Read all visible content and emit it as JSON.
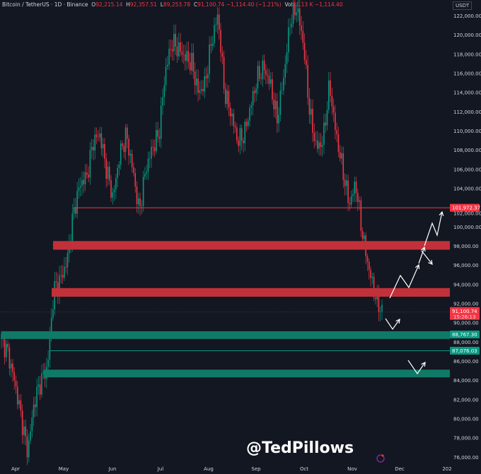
{
  "header": {
    "symbol": "Bitcoin / TetherUS · 1D · Binance",
    "o_label": "O",
    "open": "92,215.14",
    "h_label": "H",
    "high": "92,357.51",
    "l_label": "L",
    "low": "89,253.78",
    "c_label": "C",
    "close": "91,100.74",
    "change": "−1,114.40 (−1.21%)",
    "vol_label": "Vol",
    "volume": "21.13 K",
    "vol_change": "−1,114.40"
  },
  "currency": "USDT",
  "watermark": "@TedPillows",
  "colors": {
    "background": "#131722",
    "up": "#089981",
    "down": "#f23645",
    "zone_red": "#c2303a",
    "zone_green": "#0f7a67",
    "arrows": "#ffffff"
  },
  "chart_data": {
    "type": "candlestick",
    "yaxis": {
      "min": 75500,
      "max": 123500,
      "ticks": [
        76000,
        78000,
        80000,
        82000,
        84000,
        86000,
        88000,
        90000,
        92000,
        94000,
        96000,
        98000,
        100000,
        102000,
        104000,
        106000,
        108000,
        110000,
        112000,
        114000,
        116000,
        118000,
        120000,
        122000
      ]
    },
    "ytick_labels": [
      "76,000.00",
      "78,000.00",
      "80,000.00",
      "82,000.00",
      "84,000.00",
      "86,000.00",
      "88,000.00",
      "90,000.00",
      "92,000.00",
      "94,000.00",
      "96,000.00",
      "98,000.00",
      "100,000.00",
      "102,000.00",
      "104,000.00",
      "106,000.00",
      "108,000.00",
      "110,000.00",
      "112,000.00",
      "114,000.00",
      "116,000.00",
      "118,000.00",
      "120,000.00",
      "122,000.00"
    ],
    "xtick_labels": [
      "Apr",
      "May",
      "Jun",
      "Jul",
      "Aug",
      "Sep",
      "Oct",
      "Nov",
      "Dec",
      "202"
    ],
    "approx_closes": [
      88290,
      86800,
      83900,
      80200,
      76500,
      81700,
      83900,
      85300,
      93400,
      94500,
      96400,
      101500,
      104500,
      105200,
      108900,
      109600,
      106000,
      103000,
      107400,
      109600,
      106000,
      101500,
      106000,
      108200,
      109600,
      116300,
      119200,
      118500,
      117700,
      117000,
      114000,
      114800,
      119200,
      122100,
      114000,
      111800,
      108900,
      109600,
      112600,
      115500,
      116600,
      114800,
      111100,
      115500,
      121400,
      122900,
      119200,
      111800,
      108200,
      108900,
      114800,
      109600,
      106000,
      102300,
      104500,
      99300,
      95600,
      92700,
      91100
    ],
    "resistance_zones": [
      {
        "low": 97600,
        "high": 98500
      },
      {
        "low": 92700,
        "high": 93600
      }
    ],
    "support_zones": [
      {
        "low": 88300,
        "high": 89100
      },
      {
        "low": 84300,
        "high": 85100
      }
    ],
    "price_lines": [
      {
        "value": 101972.37,
        "label": "101,972.37",
        "color": "#f23645"
      },
      {
        "value": 87076.03,
        "label": "87,076.03",
        "color": "#089981"
      },
      {
        "value": 88767.3,
        "label": "88,767.30",
        "color": "#089981"
      }
    ],
    "last_price": {
      "value": 91100.74,
      "label": "91,100.74",
      "countdown": "15:26:13"
    }
  }
}
